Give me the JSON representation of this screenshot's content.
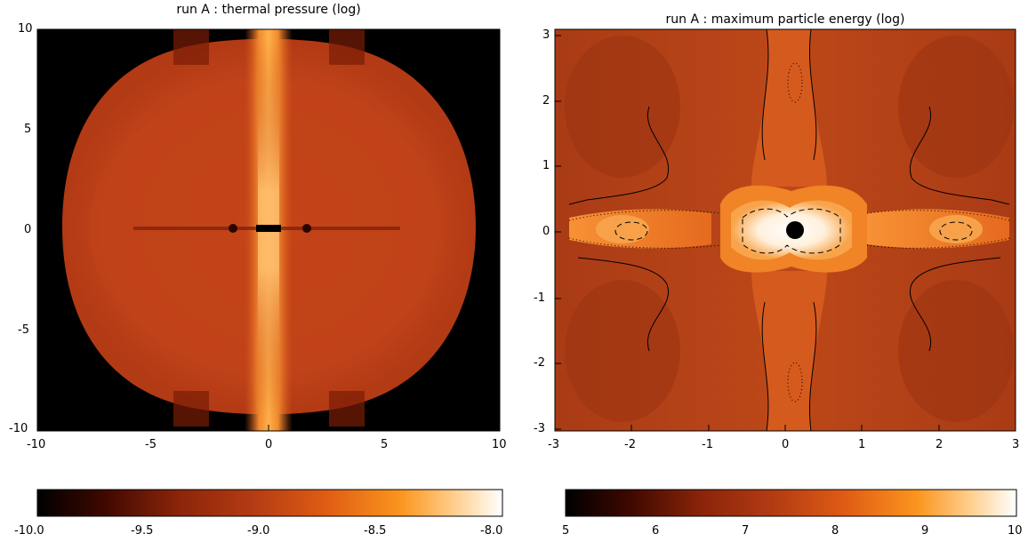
{
  "panels": [
    {
      "title": "run A : thermal pressure (log)",
      "x_ticks": [
        "-10",
        "-5",
        "0",
        "5",
        "10"
      ],
      "y_ticks": [
        "10",
        "5",
        "0",
        "-5",
        "-10"
      ],
      "colorbar_ticks": [
        "-10.0",
        "-9.5",
        "-9.0",
        "-8.5",
        "-8.0"
      ]
    },
    {
      "title": "run A : maximum particle energy (log)",
      "x_ticks": [
        "-3",
        "-2",
        "-1",
        "0",
        "1",
        "2",
        "3"
      ],
      "y_ticks": [
        "3",
        "2",
        "1",
        "0",
        "-1",
        "-2",
        "-3"
      ],
      "colorbar_ticks": [
        "5",
        "6",
        "7",
        "8",
        "9",
        "10"
      ]
    }
  ],
  "colormap": [
    "#000000",
    "#5a0f00",
    "#a8320f",
    "#d24a12",
    "#f07a1c",
    "#ffb14a",
    "#ffe3b0",
    "#ffffff"
  ]
}
